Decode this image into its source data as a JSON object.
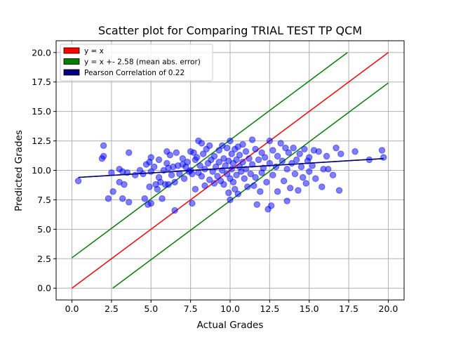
{
  "chart_data": {
    "type": "scatter",
    "title": "Scatter plot for Comparing TRIAL TEST TP QCM",
    "xlabel": "Actual Grades",
    "ylabel": "Predicted Grades",
    "xlim": [
      -1.0,
      21.0
    ],
    "ylim": [
      -1.0,
      21.0
    ],
    "xticks": [
      "0.0",
      "2.5",
      "5.0",
      "7.5",
      "10.0",
      "12.5",
      "15.0",
      "17.5",
      "20.0"
    ],
    "yticks": [
      "0.0",
      "2.5",
      "5.0",
      "7.5",
      "10.0",
      "12.5",
      "15.0",
      "17.5",
      "20.0"
    ],
    "grid": true,
    "legend_position": "top-left",
    "colors": {
      "points": "#0000ff",
      "identity": "#ff0000",
      "error_band": "#008000",
      "regression": "#000080"
    },
    "lines": [
      {
        "name": "y = x",
        "color": "#ff0000",
        "segments": [
          [
            [
              0,
              0
            ],
            [
              20,
              20
            ]
          ]
        ]
      },
      {
        "name": "y = x +- 2.58 (mean abs. error)",
        "color": "#008000",
        "segments": [
          [
            [
              0,
              2.58
            ],
            [
              17.42,
              20
            ]
          ],
          [
            [
              2.58,
              0
            ],
            [
              20,
              17.42
            ]
          ]
        ]
      },
      {
        "name": "Pearson Correlation of 0.22",
        "color": "#000080",
        "segments": [
          [
            [
              0.4,
              9.4
            ],
            [
              19.7,
              11.0
            ]
          ]
        ]
      }
    ],
    "points": [
      [
        0.4,
        9.1
      ],
      [
        1.9,
        11.0
      ],
      [
        2.0,
        12.1
      ],
      [
        2.0,
        11.2
      ],
      [
        2.3,
        7.6
      ],
      [
        2.5,
        9.8
      ],
      [
        2.6,
        8.2
      ],
      [
        3.0,
        10.1
      ],
      [
        3.0,
        9.0
      ],
      [
        3.2,
        9.9
      ],
      [
        3.2,
        7.6
      ],
      [
        3.3,
        8.8
      ],
      [
        3.5,
        9.8
      ],
      [
        3.6,
        11.5
      ],
      [
        3.6,
        7.3
      ],
      [
        4.0,
        9.6
      ],
      [
        4.3,
        10.0
      ],
      [
        4.5,
        9.7
      ],
      [
        4.6,
        7.6
      ],
      [
        4.7,
        10.5
      ],
      [
        4.8,
        7.1
      ],
      [
        4.9,
        10.7
      ],
      [
        4.9,
        8.6
      ],
      [
        5.0,
        11.1
      ],
      [
        5.0,
        9.9
      ],
      [
        5.0,
        7.2
      ],
      [
        5.2,
        10.3
      ],
      [
        5.3,
        8.8
      ],
      [
        5.4,
        8.4
      ],
      [
        5.5,
        10.9
      ],
      [
        5.5,
        9.4
      ],
      [
        5.6,
        9.0
      ],
      [
        5.7,
        7.6
      ],
      [
        5.8,
        10.0
      ],
      [
        5.9,
        8.8
      ],
      [
        6.0,
        11.6
      ],
      [
        6.0,
        10.6
      ],
      [
        6.1,
        10.2
      ],
      [
        6.1,
        8.8
      ],
      [
        6.2,
        11.3
      ],
      [
        6.3,
        9.6
      ],
      [
        6.4,
        10.3
      ],
      [
        6.5,
        9.0
      ],
      [
        6.5,
        6.6
      ],
      [
        6.6,
        11.5
      ],
      [
        6.7,
        10.4
      ],
      [
        6.8,
        9.7
      ],
      [
        7.0,
        11.0
      ],
      [
        7.0,
        10.5
      ],
      [
        7.1,
        9.3
      ],
      [
        7.2,
        10.3
      ],
      [
        7.3,
        10.7
      ],
      [
        7.4,
        9.9
      ],
      [
        7.5,
        11.6
      ],
      [
        7.5,
        10.0
      ],
      [
        7.6,
        9.7
      ],
      [
        7.6,
        7.2
      ],
      [
        7.7,
        11.5
      ],
      [
        7.8,
        10.9
      ],
      [
        7.8,
        8.4
      ],
      [
        7.9,
        11.1
      ],
      [
        8.0,
        12.5
      ],
      [
        8.0,
        9.8
      ],
      [
        8.1,
        10.4
      ],
      [
        8.2,
        12.3
      ],
      [
        8.2,
        9.5
      ],
      [
        8.3,
        11.4
      ],
      [
        8.4,
        10.1
      ],
      [
        8.4,
        8.7
      ],
      [
        8.5,
        11.8
      ],
      [
        8.6,
        10.6
      ],
      [
        8.7,
        12.1
      ],
      [
        8.7,
        9.2
      ],
      [
        8.8,
        10.9
      ],
      [
        8.9,
        9.9
      ],
      [
        9.0,
        11.2
      ],
      [
        9.0,
        8.9
      ],
      [
        9.1,
        10.3
      ],
      [
        9.2,
        9.5
      ],
      [
        9.3,
        11.7
      ],
      [
        9.3,
        10.7
      ],
      [
        9.4,
        9.1
      ],
      [
        9.5,
        12.1
      ],
      [
        9.5,
        10.0
      ],
      [
        9.6,
        11.0
      ],
      [
        9.6,
        8.8
      ],
      [
        9.7,
        10.4
      ],
      [
        9.8,
        11.9
      ],
      [
        9.8,
        9.7
      ],
      [
        9.9,
        10.8
      ],
      [
        9.9,
        8.1
      ],
      [
        10.0,
        12.5
      ],
      [
        10.0,
        9.3
      ],
      [
        10.0,
        7.5
      ],
      [
        10.1,
        11.4
      ],
      [
        10.1,
        10.1
      ],
      [
        10.2,
        10.6
      ],
      [
        10.2,
        9.0
      ],
      [
        10.3,
        11.8
      ],
      [
        10.3,
        8.4
      ],
      [
        10.4,
        10.9
      ],
      [
        10.4,
        9.6
      ],
      [
        10.5,
        12.0
      ],
      [
        10.5,
        8.0
      ],
      [
        10.6,
        10.3
      ],
      [
        10.6,
        11.3
      ],
      [
        10.7,
        9.9
      ],
      [
        10.8,
        12.2
      ],
      [
        10.8,
        10.7
      ],
      [
        10.9,
        9.3
      ],
      [
        11.0,
        11.6
      ],
      [
        11.0,
        10.1
      ],
      [
        11.1,
        8.6
      ],
      [
        11.2,
        11.0
      ],
      [
        11.3,
        9.7
      ],
      [
        11.4,
        12.6
      ],
      [
        11.4,
        10.5
      ],
      [
        11.5,
        8.7
      ],
      [
        11.6,
        11.8
      ],
      [
        11.6,
        9.4
      ],
      [
        11.7,
        7.1
      ],
      [
        11.8,
        10.9
      ],
      [
        11.9,
        8.2
      ],
      [
        12.0,
        11.5
      ],
      [
        12.0,
        9.8
      ],
      [
        12.1,
        10.2
      ],
      [
        12.2,
        11.1
      ],
      [
        12.3,
        9.0
      ],
      [
        12.4,
        6.7
      ],
      [
        12.5,
        12.5
      ],
      [
        12.5,
        10.6
      ],
      [
        12.6,
        7.0
      ],
      [
        12.7,
        11.7
      ],
      [
        12.7,
        9.6
      ],
      [
        12.9,
        10.3
      ],
      [
        13.0,
        11.2
      ],
      [
        13.0,
        8.2
      ],
      [
        13.2,
        12.3
      ],
      [
        13.3,
        10.8
      ],
      [
        13.4,
        9.1
      ],
      [
        13.5,
        11.9
      ],
      [
        13.6,
        10.1
      ],
      [
        13.6,
        7.4
      ],
      [
        13.7,
        11.5
      ],
      [
        13.8,
        8.5
      ],
      [
        13.9,
        10.6
      ],
      [
        14.0,
        11.9
      ],
      [
        14.1,
        9.7
      ],
      [
        14.2,
        10.9
      ],
      [
        14.3,
        8.3
      ],
      [
        14.4,
        11.4
      ],
      [
        14.5,
        10.3
      ],
      [
        14.6,
        9.4
      ],
      [
        14.7,
        11.8
      ],
      [
        14.8,
        8.9
      ],
      [
        14.9,
        10.8
      ],
      [
        15.0,
        9.9
      ],
      [
        15.0,
        11.1
      ],
      [
        15.2,
        10.4
      ],
      [
        15.3,
        11.7
      ],
      [
        15.4,
        9.3
      ],
      [
        15.6,
        11.6
      ],
      [
        15.8,
        8.6
      ],
      [
        15.9,
        10.1
      ],
      [
        16.1,
        11.2
      ],
      [
        16.2,
        10.1
      ],
      [
        16.5,
        9.6
      ],
      [
        16.7,
        11.9
      ],
      [
        16.9,
        8.3
      ],
      [
        17.0,
        11.4
      ],
      [
        17.9,
        11.6
      ],
      [
        18.8,
        10.9
      ],
      [
        19.6,
        11.7
      ],
      [
        19.7,
        11.1
      ]
    ]
  }
}
